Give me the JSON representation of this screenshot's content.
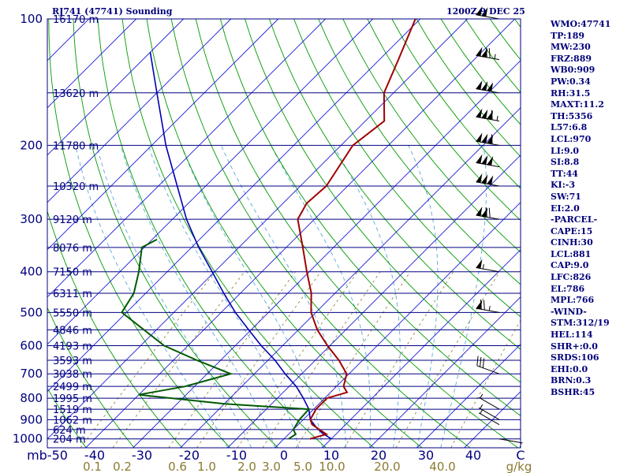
{
  "header": {
    "station": "RJ741 (47741) Sounding",
    "time": "1200Z  9 DEC 25"
  },
  "colors": {
    "isobar": "#000080",
    "frame": "#000080",
    "isotherm": "#1a1ad8",
    "dry_adiabat": "#009a00",
    "moist_adiabat": "#5aaad8",
    "mixing_ratio": "#8a7a30",
    "temperature": "#a00000",
    "dewpoint": "#005a00",
    "parcel": "#0000b0",
    "wind": "#000000",
    "mixing_label": "#8a7a30",
    "stats_text": "#00007a"
  },
  "chart_data": {
    "type": "skew-t log-p",
    "y_axis": {
      "quantity": "pressure",
      "unit": "mb",
      "ylim": [
        1050,
        100
      ],
      "scale": "log",
      "ticks": [
        100,
        200,
        300,
        400,
        500,
        600,
        700,
        800,
        900,
        1000
      ]
    },
    "x_axis": {
      "quantity": "temperature",
      "unit": "C",
      "xlim": [
        -50,
        50
      ],
      "ticks": [
        -50,
        -40,
        -30,
        -20,
        -10,
        0,
        10,
        20,
        30,
        40
      ],
      "tick_labels": [
        "mb-50",
        "-40",
        "-30",
        "-20",
        "-10",
        "0",
        "10",
        "20",
        "30",
        "40",
        "C"
      ]
    },
    "height_labels": [
      {
        "p": 100,
        "label": "16170 m"
      },
      {
        "p": 150,
        "label": "13620 m"
      },
      {
        "p": 200,
        "label": "11780 m"
      },
      {
        "p": 250,
        "label": "10320 m"
      },
      {
        "p": 300,
        "label": "9120 m"
      },
      {
        "p": 350,
        "label": "8076 m"
      },
      {
        "p": 400,
        "label": "7150 m"
      },
      {
        "p": 450,
        "label": "6311 m"
      },
      {
        "p": 500,
        "label": "5550 m"
      },
      {
        "p": 550,
        "label": "4846 m"
      },
      {
        "p": 600,
        "label": "4193 m"
      },
      {
        "p": 650,
        "label": "3593 m"
      },
      {
        "p": 700,
        "label": "3038 m"
      },
      {
        "p": 750,
        "label": "2499 m"
      },
      {
        "p": 800,
        "label": "1995 m"
      },
      {
        "p": 850,
        "label": "1519 m"
      },
      {
        "p": 900,
        "label": "1062 m"
      },
      {
        "p": 950,
        "label": "624 m"
      },
      {
        "p": 1000,
        "label": "204 m"
      }
    ],
    "mixing_ratio_labels": [
      "0.1",
      "0.2",
      "0.6",
      "1.0",
      "2.0",
      "3.0",
      "5.0",
      "10.0",
      "20.0",
      "40.0",
      "g/kg"
    ],
    "mixing_ratio_lines": [
      0.1,
      0.2,
      0.6,
      1.0,
      2.0,
      3.0,
      5.0,
      10.0,
      20.0,
      40.0
    ],
    "dry_adiabats_theta_k": [
      230,
      240,
      250,
      260,
      270,
      280,
      290,
      300,
      310,
      320,
      330,
      340,
      350,
      360,
      370,
      380,
      390,
      400,
      410,
      420,
      430,
      440,
      450,
      460,
      470,
      480,
      490,
      500,
      510,
      520
    ],
    "moist_adiabats_start_c": [
      -10,
      -5,
      0,
      5,
      10,
      15,
      20,
      25,
      30,
      35
    ],
    "isotherms_c": [
      -130,
      -120,
      -110,
      -100,
      -90,
      -80,
      -70,
      -60,
      -50,
      -40,
      -30,
      -20,
      -10,
      0,
      10,
      20,
      30,
      40
    ],
    "temperature_profile": [
      {
        "p": 1000,
        "t": 5.5
      },
      {
        "p": 975,
        "t": 8.0
      },
      {
        "p": 950,
        "t": 5.5
      },
      {
        "p": 925,
        "t": 3.0
      },
      {
        "p": 900,
        "t": 1.5
      },
      {
        "p": 850,
        "t": 0.5
      },
      {
        "p": 800,
        "t": 0.5
      },
      {
        "p": 775,
        "t": 3.5
      },
      {
        "p": 750,
        "t": 1.5
      },
      {
        "p": 700,
        "t": -0.5
      },
      {
        "p": 650,
        "t": -5.0
      },
      {
        "p": 600,
        "t": -10.5
      },
      {
        "p": 550,
        "t": -16.0
      },
      {
        "p": 500,
        "t": -21.0
      },
      {
        "p": 450,
        "t": -25.0
      },
      {
        "p": 400,
        "t": -30.5
      },
      {
        "p": 350,
        "t": -36.5
      },
      {
        "p": 300,
        "t": -43.5
      },
      {
        "p": 275,
        "t": -45.0
      },
      {
        "p": 250,
        "t": -44.5
      },
      {
        "p": 200,
        "t": -47.5
      },
      {
        "p": 175,
        "t": -46.0
      },
      {
        "p": 150,
        "t": -52.0
      },
      {
        "p": 125,
        "t": -56.0
      },
      {
        "p": 100,
        "t": -61.0
      }
    ],
    "dewpoint_profile": [
      {
        "p": 1000,
        "t": 1.0
      },
      {
        "p": 975,
        "t": 1.5
      },
      {
        "p": 950,
        "t": 0.0
      },
      {
        "p": 900,
        "t": -0.8
      },
      {
        "p": 850,
        "t": -1.0
      },
      {
        "p": 825,
        "t": -20.0
      },
      {
        "p": 785,
        "t": -40.0
      },
      {
        "p": 750,
        "t": -32.0
      },
      {
        "p": 700,
        "t": -25.0
      },
      {
        "p": 650,
        "t": -35.0
      },
      {
        "p": 600,
        "t": -45.0
      },
      {
        "p": 500,
        "t": -61.0
      },
      {
        "p": 450,
        "t": -62.5
      },
      {
        "p": 400,
        "t": -66.0
      },
      {
        "p": 350,
        "t": -70.5
      },
      {
        "p": 335,
        "t": -69.0
      }
    ],
    "parcel_profile": [
      {
        "p": 1000,
        "t": 10.0
      },
      {
        "p": 970,
        "t": 7.0
      },
      {
        "p": 940,
        "t": 4.5
      },
      {
        "p": 900,
        "t": 1.5
      },
      {
        "p": 850,
        "t": -1.0
      },
      {
        "p": 800,
        "t": -4.5
      },
      {
        "p": 750,
        "t": -8.5
      },
      {
        "p": 700,
        "t": -13.5
      },
      {
        "p": 650,
        "t": -18.5
      },
      {
        "p": 600,
        "t": -24.5
      },
      {
        "p": 550,
        "t": -30.5
      },
      {
        "p": 500,
        "t": -37.0
      },
      {
        "p": 450,
        "t": -43.5
      },
      {
        "p": 400,
        "t": -50.5
      },
      {
        "p": 350,
        "t": -58.5
      },
      {
        "p": 300,
        "t": -67.0
      },
      {
        "p": 250,
        "t": -76.0
      },
      {
        "p": 200,
        "t": -87.0
      },
      {
        "p": 150,
        "t": -100.0
      },
      {
        "p": 120,
        "t": -110.0
      }
    ],
    "wind_barbs": [
      {
        "p": 1000,
        "dir": 100,
        "kt": 5
      },
      {
        "p": 925,
        "dir": 300,
        "kt": 5
      },
      {
        "p": 900,
        "dir": 300,
        "kt": 5
      },
      {
        "p": 850,
        "dir": 300,
        "kt": 5
      },
      {
        "p": 700,
        "dir": 290,
        "kt": 30
      },
      {
        "p": 500,
        "dir": 280,
        "kt": 75
      },
      {
        "p": 400,
        "dir": 280,
        "kt": 55
      },
      {
        "p": 300,
        "dir": 280,
        "kt": 120
      },
      {
        "p": 250,
        "dir": 280,
        "kt": 150
      },
      {
        "p": 225,
        "dir": 280,
        "kt": 150
      },
      {
        "p": 200,
        "dir": 280,
        "kt": 160
      },
      {
        "p": 175,
        "dir": 280,
        "kt": 165
      },
      {
        "p": 150,
        "dir": 280,
        "kt": 150
      },
      {
        "p": 125,
        "dir": 280,
        "kt": 125
      },
      {
        "p": 100,
        "dir": 280,
        "kt": 100
      }
    ]
  },
  "stats": [
    "WMO:47741",
    "TP:189",
    "MW:230",
    "FRZ:889",
    "WB0:909",
    "PW:0.34",
    "RH:31.5",
    "MAXT:11.2",
    "TH:5356",
    "L57:6.8",
    "LCL:970",
    "LI:9.0",
    "SI:8.8",
    "TT:44",
    "KI:-3",
    "SW:71",
    "EI:2.0",
    "-PARCEL-",
    "CAPE:15",
    "CINH:30",
    "LCL:881",
    "CAP:9.0",
    "LFC:826",
    "EL:786",
    "MPL:766",
    "-WIND-",
    "STM:312/19",
    "HEL:114",
    "SHR+:0.0",
    "SRDS:106",
    "EHI:0.0",
    "BRN:0.3",
    "BSHR:45"
  ]
}
